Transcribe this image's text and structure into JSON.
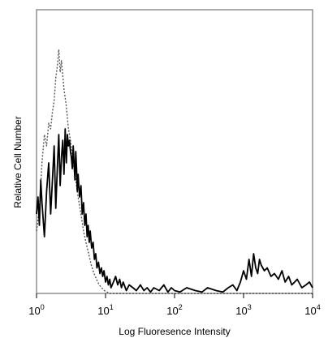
{
  "chart_data": {
    "type": "line",
    "title": "",
    "xlabel": "Log Fluoresence Intensity",
    "ylabel": "Relative Cell Number",
    "xscale": "log",
    "xlim": [
      1,
      10000
    ],
    "ylim": [
      0,
      100
    ],
    "grid": false,
    "legend": "none",
    "x_ticks": [
      {
        "value": 1,
        "base": "10",
        "exp": "0"
      },
      {
        "value": 10,
        "base": "10",
        "exp": "1"
      },
      {
        "value": 100,
        "base": "10",
        "exp": "2"
      },
      {
        "value": 1000,
        "base": "10",
        "exp": "3"
      },
      {
        "value": 10000,
        "base": "10",
        "exp": "4"
      }
    ],
    "series": [
      {
        "style": "dashed",
        "color": "#555555",
        "x": [
          1.0,
          1.1,
          1.2,
          1.3,
          1.4,
          1.5,
          1.6,
          1.7,
          1.8,
          1.9,
          2.0,
          2.1,
          2.2,
          2.3,
          2.5,
          2.7,
          2.9,
          3.1,
          3.4,
          3.7,
          4.0,
          4.4,
          4.8,
          5.2,
          5.7,
          6.2,
          6.8,
          7.4,
          8.1,
          8.8,
          9.6,
          10.5,
          11.5,
          13,
          15,
          20,
          30,
          50,
          100,
          1000,
          10000
        ],
        "values": [
          22,
          30,
          46,
          56,
          52,
          60,
          58,
          64,
          68,
          76,
          80,
          86,
          78,
          82,
          72,
          66,
          58,
          54,
          46,
          40,
          34,
          28,
          22,
          18,
          14,
          10,
          7,
          5,
          3,
          2,
          1,
          0.5,
          0,
          0,
          0,
          0,
          0,
          0,
          0,
          0,
          0
        ]
      },
      {
        "style": "solid",
        "color": "#000000",
        "x": [
          1.0,
          1.05,
          1.1,
          1.15,
          1.2,
          1.3,
          1.4,
          1.5,
          1.6,
          1.7,
          1.8,
          1.9,
          2.0,
          2.1,
          2.2,
          2.3,
          2.4,
          2.5,
          2.6,
          2.7,
          2.8,
          2.9,
          3.0,
          3.1,
          3.2,
          3.3,
          3.4,
          3.5,
          3.6,
          3.7,
          3.8,
          3.9,
          4.0,
          4.2,
          4.4,
          4.6,
          4.8,
          5.0,
          5.2,
          5.4,
          5.6,
          5.8,
          6.0,
          6.3,
          6.6,
          6.9,
          7.2,
          7.5,
          7.9,
          8.3,
          8.7,
          9.1,
          9.5,
          10,
          10.5,
          11,
          11.5,
          12,
          13,
          14,
          15,
          16,
          17,
          18,
          20,
          22,
          25,
          28,
          32,
          36,
          40,
          45,
          50,
          60,
          70,
          80,
          90,
          100,
          120,
          150,
          200,
          250,
          300,
          400,
          500,
          600,
          700,
          800,
          900,
          1000,
          1100,
          1200,
          1300,
          1400,
          1500,
          1600,
          1700,
          1800,
          2000,
          2200,
          2500,
          2800,
          3200,
          3600,
          4000,
          4500,
          5000,
          5500,
          6000,
          7000,
          8000,
          9000,
          10000
        ],
        "values": [
          28,
          34,
          24,
          40,
          32,
          20,
          36,
          46,
          28,
          40,
          52,
          30,
          44,
          56,
          38,
          48,
          54,
          42,
          58,
          46,
          56,
          52,
          54,
          50,
          48,
          44,
          52,
          46,
          40,
          50,
          44,
          36,
          42,
          34,
          38,
          28,
          32,
          24,
          28,
          20,
          24,
          18,
          22,
          16,
          18,
          12,
          14,
          9,
          11,
          7,
          9,
          6,
          8,
          4,
          6,
          3,
          5,
          2,
          4,
          6,
          3,
          5,
          2,
          4,
          1,
          3,
          2,
          1,
          3,
          1,
          2,
          0.5,
          2,
          1,
          3,
          0.5,
          2,
          1,
          0.5,
          2,
          1,
          0.5,
          2,
          1,
          0.5,
          2,
          3,
          1,
          4,
          8,
          5,
          12,
          6,
          14,
          9,
          7,
          12,
          10,
          8,
          9,
          6,
          7,
          5,
          8,
          4,
          6,
          3,
          4,
          5,
          2,
          3,
          4,
          2
        ]
      }
    ]
  }
}
